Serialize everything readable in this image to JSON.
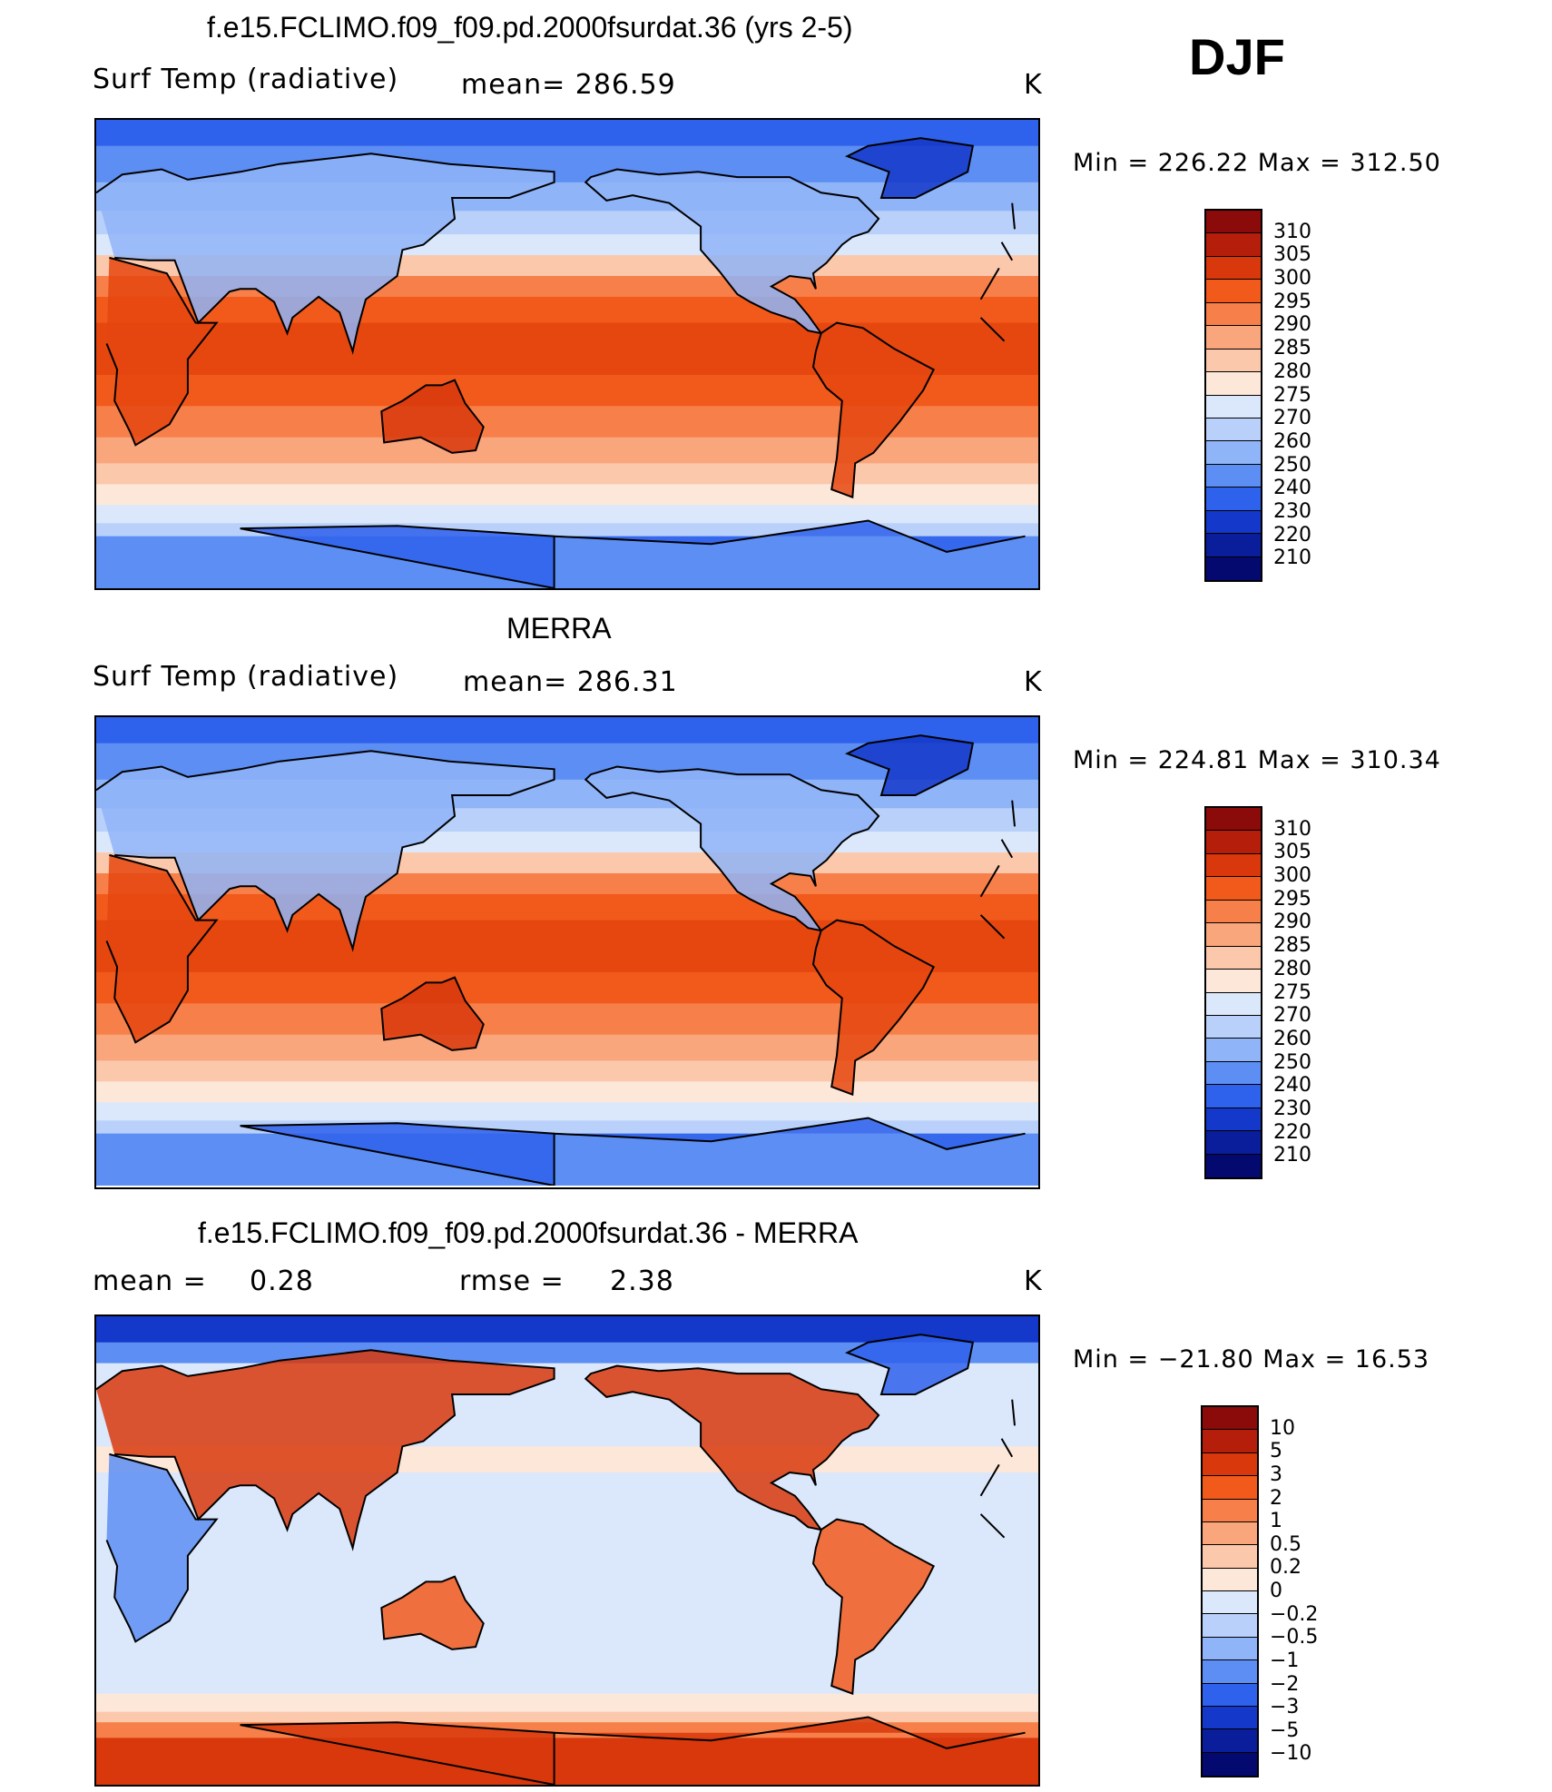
{
  "season": "DJF",
  "panels": [
    {
      "title": "f.e15.FCLIMO.f09_f09.pd.2000fsurdat.36 (yrs 2-5)",
      "variable": "Surf Temp (radiative)",
      "stat1": "mean=  286.59",
      "stat2": "",
      "units": "K",
      "minmax": "Min  =  226.22  Max  =  312.50",
      "field_type": "absolute",
      "colorbar": {
        "labels": [
          "310",
          "305",
          "300",
          "295",
          "290",
          "285",
          "280",
          "275",
          "270",
          "260",
          "250",
          "240",
          "230",
          "220",
          "210"
        ],
        "colors": [
          "#8b0a0a",
          "#b41e0a",
          "#d8380c",
          "#f25a1c",
          "#f7804a",
          "#f9a67c",
          "#fbc8ac",
          "#fde7d8",
          "#dbe8fb",
          "#b9d1fa",
          "#8fb4f7",
          "#5d8ef3",
          "#2f62ec",
          "#1438c9",
          "#0a1d9b",
          "#04096f"
        ]
      }
    },
    {
      "title": "MERRA",
      "variable": "Surf Temp (radiative)",
      "stat1": "mean=  286.31",
      "stat2": "",
      "units": "K",
      "minmax": "Min  =  224.81  Max  =  310.34",
      "field_type": "absolute",
      "colorbar": {
        "labels": [
          "310",
          "305",
          "300",
          "295",
          "290",
          "285",
          "280",
          "275",
          "270",
          "260",
          "250",
          "240",
          "230",
          "220",
          "210"
        ],
        "colors": [
          "#8b0a0a",
          "#b41e0a",
          "#d8380c",
          "#f25a1c",
          "#f7804a",
          "#f9a67c",
          "#fbc8ac",
          "#fde7d8",
          "#dbe8fb",
          "#b9d1fa",
          "#8fb4f7",
          "#5d8ef3",
          "#2f62ec",
          "#1438c9",
          "#0a1d9b",
          "#04096f"
        ]
      }
    },
    {
      "title": "f.e15.FCLIMO.f09_f09.pd.2000fsurdat.36 - MERRA",
      "variable": "mean =",
      "stat1": "0.28",
      "stat2_label": "rmse =",
      "stat2": "2.38",
      "units": "K",
      "minmax": "Min  = −21.80  Max  =   16.53",
      "field_type": "difference",
      "colorbar": {
        "labels": [
          "10",
          "5",
          "3",
          "2",
          "1",
          "0.5",
          "0.2",
          "0",
          "−0.2",
          "−0.5",
          "−1",
          "−2",
          "−3",
          "−5",
          "−10"
        ],
        "colors": [
          "#8b0a0a",
          "#b41e0a",
          "#d8380c",
          "#f25a1c",
          "#f7804a",
          "#f9a67c",
          "#fbc8ac",
          "#fde7d8",
          "#dbe8fb",
          "#b9d1fa",
          "#8fb4f7",
          "#5d8ef3",
          "#2f62ec",
          "#1438c9",
          "#0a1d9b",
          "#04096f"
        ]
      }
    }
  ]
}
